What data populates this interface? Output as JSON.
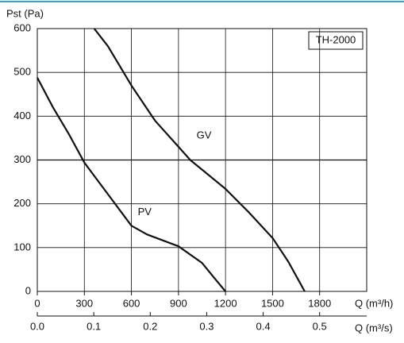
{
  "chart_data": {
    "type": "line",
    "y_label": "Pst (Pa)",
    "x_label": "Q (m³/h)",
    "x2_label": "Q (m³/s)",
    "model_label": "TH-2000",
    "xlim": [
      0,
      2100
    ],
    "xticks": [
      0,
      300,
      600,
      900,
      1200,
      1500,
      1800
    ],
    "x2lim": [
      0,
      0.58333
    ],
    "x2ticks": [
      {
        "value": 0,
        "label": "0.0"
      },
      0.1,
      0.2,
      0.3,
      0.4,
      0.5
    ],
    "ylim": [
      0,
      600
    ],
    "yticks": [
      0,
      100,
      200,
      300,
      400,
      500,
      600
    ],
    "grid": true,
    "series": [
      {
        "name": "GV",
        "color": "#111111",
        "x": [
          363,
          450,
          600,
          750,
          900,
          975,
          1050,
          1200,
          1350,
          1500,
          1600,
          1705
        ],
        "values": [
          600,
          560,
          470,
          390,
          330,
          300,
          278,
          234,
          180,
          122,
          68,
          0
        ]
      },
      {
        "name": "PV",
        "color": "#111111",
        "x": [
          0,
          100,
          200,
          300,
          450,
          600,
          700,
          900,
          1050,
          1130,
          1200
        ],
        "values": [
          488,
          420,
          360,
          294,
          222,
          150,
          130,
          103,
          65,
          30,
          0
        ]
      }
    ]
  }
}
